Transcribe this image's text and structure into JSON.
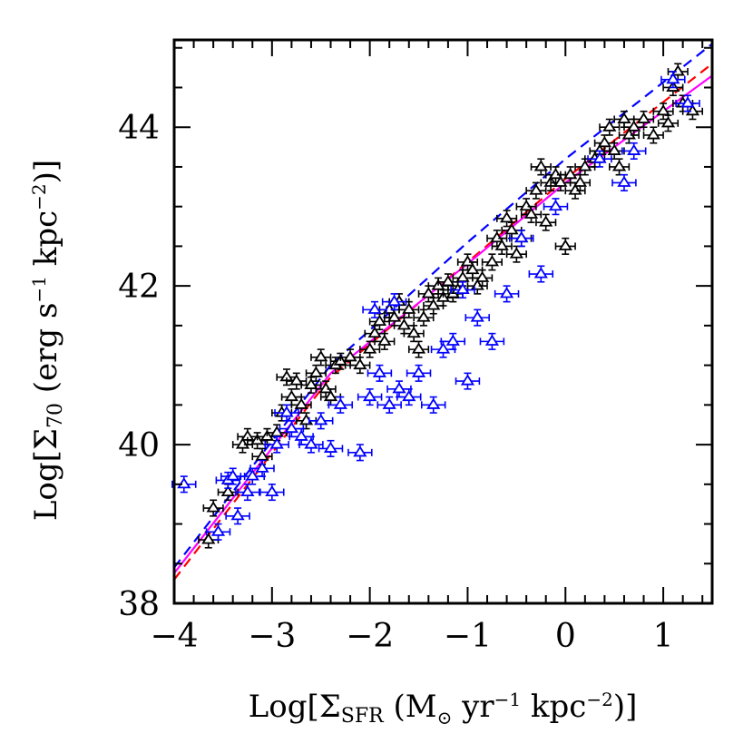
{
  "chart_data": {
    "type": "scatter",
    "title": "",
    "xlabel_parts": {
      "pre": "Log[Σ",
      "sub": "SFR",
      "unit_pre": " (M",
      "odot": "⊙",
      "unit_mid": " yr",
      "exp1": "−1",
      "unit_kpc": " kpc",
      "exp2": "−2",
      "post": ")]"
    },
    "ylabel_parts": {
      "pre": "Log[Σ",
      "sub": "70",
      "unit_pre": "  (erg s",
      "exp1": "−1",
      "unit_kpc": " kpc",
      "exp2": "−2",
      "post": ")]"
    },
    "xlim": [
      -4,
      1.5
    ],
    "ylim": [
      38,
      45.1
    ],
    "x_ticks": [
      -4,
      -3,
      -2,
      -1,
      0,
      1
    ],
    "x_tick_labels": [
      "−4",
      "−3",
      "−2",
      "−1",
      "0",
      "1"
    ],
    "y_ticks": [
      38,
      40,
      42,
      44
    ],
    "y_tick_labels": [
      "38",
      "40",
      "42",
      "44"
    ],
    "grid": false,
    "colors": {
      "black_points": "#000000",
      "blue_points": "#0000ff",
      "blue_line": "#0000ff",
      "red_line": "#ff0000",
      "magenta_line": "#ff00ff"
    },
    "series": [
      {
        "color": "black",
        "x_err": 0.1,
        "y_err": 0.1,
        "points": [
          [
            -3.65,
            38.8
          ],
          [
            -3.6,
            39.2
          ],
          [
            -3.45,
            39.4
          ],
          [
            -3.3,
            40.0
          ],
          [
            -3.25,
            40.1
          ],
          [
            -3.15,
            40.05
          ],
          [
            -3.1,
            39.85
          ],
          [
            -3.05,
            40.1
          ],
          [
            -2.95,
            40.15
          ],
          [
            -2.9,
            40.4
          ],
          [
            -2.85,
            40.85
          ],
          [
            -2.8,
            40.6
          ],
          [
            -2.75,
            40.8
          ],
          [
            -2.7,
            40.5
          ],
          [
            -2.65,
            40.3
          ],
          [
            -2.6,
            40.75
          ],
          [
            -2.55,
            40.9
          ],
          [
            -2.5,
            41.1
          ],
          [
            -2.45,
            40.7
          ],
          [
            -2.4,
            40.6
          ],
          [
            -2.35,
            41.0
          ],
          [
            -2.3,
            41.05
          ],
          [
            -2.2,
            41.1
          ],
          [
            -2.1,
            41.0
          ],
          [
            -2.0,
            41.2
          ],
          [
            -1.95,
            41.4
          ],
          [
            -1.9,
            41.55
          ],
          [
            -1.85,
            41.3
          ],
          [
            -1.8,
            41.7
          ],
          [
            -1.75,
            41.6
          ],
          [
            -1.7,
            41.8
          ],
          [
            -1.65,
            41.5
          ],
          [
            -1.6,
            41.7
          ],
          [
            -1.55,
            41.4
          ],
          [
            -1.5,
            41.2
          ],
          [
            -1.45,
            41.6
          ],
          [
            -1.4,
            41.9
          ],
          [
            -1.35,
            41.75
          ],
          [
            -1.3,
            42.0
          ],
          [
            -1.25,
            41.85
          ],
          [
            -1.2,
            42.05
          ],
          [
            -1.15,
            41.9
          ],
          [
            -1.1,
            41.95
          ],
          [
            -1.05,
            42.1
          ],
          [
            -1.0,
            42.3
          ],
          [
            -0.95,
            42.2
          ],
          [
            -0.9,
            42.0
          ],
          [
            -0.85,
            42.1
          ],
          [
            -0.75,
            42.3
          ],
          [
            -0.7,
            42.6
          ],
          [
            -0.65,
            42.5
          ],
          [
            -0.6,
            42.85
          ],
          [
            -0.55,
            42.7
          ],
          [
            -0.5,
            42.4
          ],
          [
            -0.45,
            42.6
          ],
          [
            -0.4,
            43.0
          ],
          [
            -0.35,
            42.9
          ],
          [
            -0.3,
            43.2
          ],
          [
            -0.25,
            43.5
          ],
          [
            -0.2,
            42.8
          ],
          [
            -0.15,
            43.3
          ],
          [
            -0.1,
            43.4
          ],
          [
            -0.05,
            43.3
          ],
          [
            0.0,
            42.5
          ],
          [
            0.05,
            43.4
          ],
          [
            0.1,
            43.2
          ],
          [
            0.15,
            43.3
          ],
          [
            0.2,
            43.5
          ],
          [
            0.3,
            43.6
          ],
          [
            0.35,
            43.7
          ],
          [
            0.4,
            43.8
          ],
          [
            0.45,
            44.0
          ],
          [
            0.5,
            43.7
          ],
          [
            0.55,
            43.5
          ],
          [
            0.6,
            44.1
          ],
          [
            0.65,
            43.9
          ],
          [
            0.7,
            44.0
          ],
          [
            0.8,
            44.1
          ],
          [
            0.9,
            43.9
          ],
          [
            1.0,
            44.2
          ],
          [
            1.05,
            44.05
          ],
          [
            1.1,
            44.5
          ],
          [
            1.15,
            44.7
          ],
          [
            1.2,
            44.3
          ],
          [
            1.3,
            44.2
          ]
        ]
      },
      {
        "color": "blue",
        "x_err": 0.12,
        "y_err": 0.1,
        "points": [
          [
            -3.9,
            39.5
          ],
          [
            -3.55,
            38.9
          ],
          [
            -3.45,
            39.55
          ],
          [
            -3.4,
            39.6
          ],
          [
            -3.35,
            39.1
          ],
          [
            -3.25,
            39.4
          ],
          [
            -3.2,
            39.6
          ],
          [
            -3.1,
            39.7
          ],
          [
            -3.0,
            39.4
          ],
          [
            -2.95,
            40.0
          ],
          [
            -2.8,
            40.2
          ],
          [
            -2.7,
            40.1
          ],
          [
            -2.6,
            40.0
          ],
          [
            -2.5,
            40.3
          ],
          [
            -2.4,
            39.95
          ],
          [
            -2.3,
            40.5
          ],
          [
            -2.1,
            39.9
          ],
          [
            -2.0,
            40.6
          ],
          [
            -1.9,
            40.9
          ],
          [
            -1.8,
            40.5
          ],
          [
            -1.7,
            40.7
          ],
          [
            -1.6,
            40.6
          ],
          [
            -1.5,
            40.9
          ],
          [
            -1.35,
            40.5
          ],
          [
            -1.25,
            41.2
          ],
          [
            -1.15,
            41.3
          ],
          [
            -1.0,
            40.8
          ],
          [
            -0.9,
            41.6
          ],
          [
            -0.75,
            41.3
          ],
          [
            -0.6,
            41.9
          ],
          [
            -0.45,
            42.6
          ],
          [
            -0.25,
            42.15
          ],
          [
            -0.1,
            43.0
          ],
          [
            0.35,
            43.6
          ],
          [
            0.6,
            43.3
          ],
          [
            0.7,
            43.7
          ],
          [
            1.1,
            44.6
          ],
          [
            1.25,
            44.3
          ],
          [
            -2.85,
            40.4
          ],
          [
            -1.95,
            41.7
          ],
          [
            -1.05,
            41.95
          ],
          [
            -1.75,
            41.8
          ]
        ]
      }
    ],
    "lines": [
      {
        "color": "blue",
        "style": "dashed",
        "points": [
          [
            -4.0,
            38.45
          ],
          [
            -2.4,
            41.0
          ],
          [
            -1.0,
            42.55
          ],
          [
            0.0,
            43.6
          ],
          [
            1.5,
            45.05
          ]
        ]
      },
      {
        "color": "red",
        "style": "dashed",
        "points": [
          [
            -4.0,
            38.3
          ],
          [
            -2.4,
            40.85
          ],
          [
            -1.0,
            42.3
          ],
          [
            0.0,
            43.35
          ],
          [
            1.5,
            44.8
          ]
        ]
      },
      {
        "color": "magenta",
        "style": "solid",
        "points": [
          [
            -4.0,
            38.38
          ],
          [
            -2.4,
            40.9
          ],
          [
            -1.0,
            42.28
          ],
          [
            0.0,
            43.3
          ],
          [
            1.5,
            44.65
          ]
        ]
      }
    ]
  }
}
